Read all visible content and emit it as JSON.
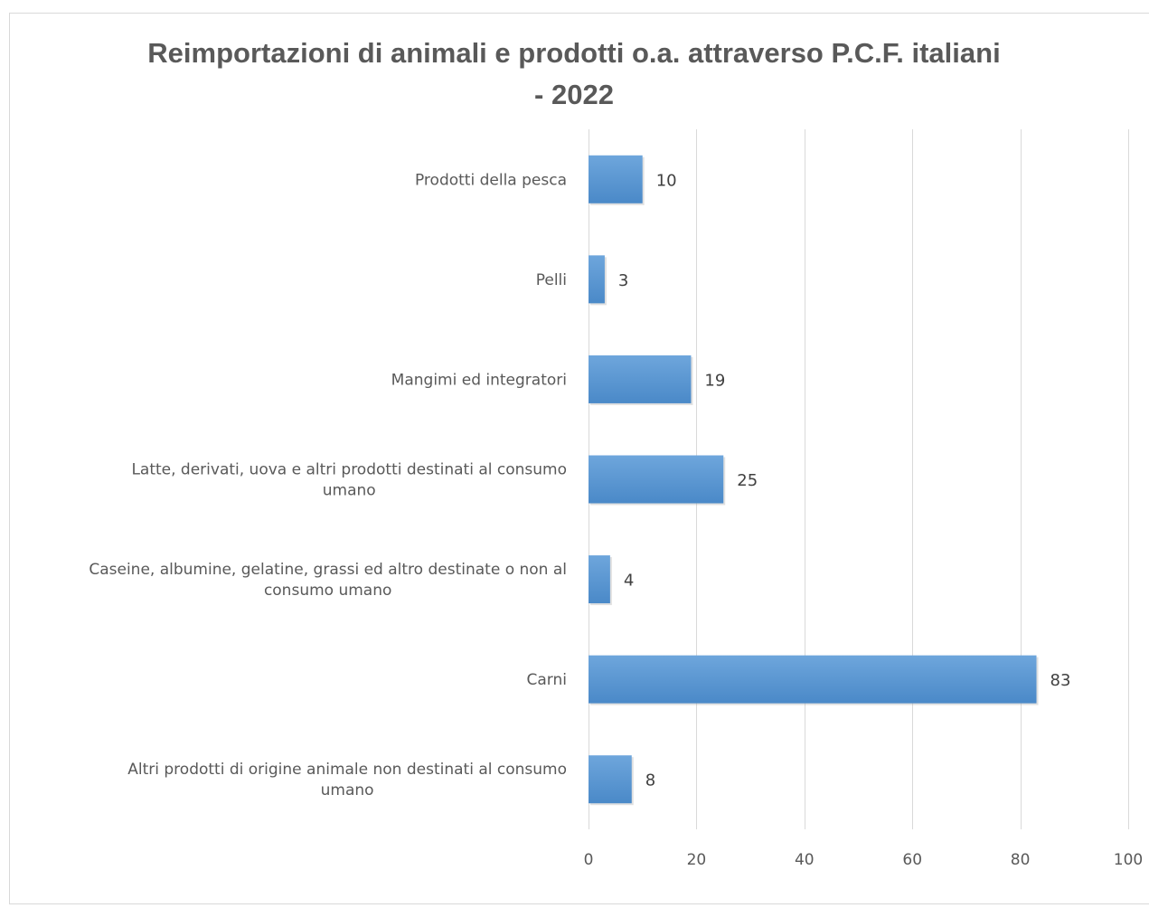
{
  "chart_data": {
    "type": "bar",
    "orientation": "horizontal",
    "title": "Reimportazioni di animali e prodotti o.a. attraverso P.C.F. italiani - 2022",
    "title_lines": [
      "Reimportazioni di animali e prodotti o.a. attraverso P.C.F. italiani",
      "- 2022"
    ],
    "categories": [
      "Prodotti della pesca",
      "Pelli",
      "Mangimi ed integratori",
      "Latte, derivati, uova e altri prodotti destinati al consumo umano",
      "Caseine, albumine, gelatine, grassi ed altro destinate o non al consumo umano",
      "Carni",
      "Altri prodotti di origine animale non destinati al consumo umano"
    ],
    "category_label_lines": [
      [
        "Prodotti della pesca"
      ],
      [
        "Pelli"
      ],
      [
        "Mangimi ed integratori"
      ],
      [
        "Latte, derivati, uova e altri prodotti destinati al consumo",
        "umano"
      ],
      [
        "Caseine, albumine, gelatine, grassi ed altro destinate o non al",
        "consumo umano"
      ],
      [
        "Carni"
      ],
      [
        "Altri prodotti di origine animale non destinati al consumo",
        "umano"
      ]
    ],
    "values": [
      10,
      3,
      19,
      25,
      4,
      83,
      8
    ],
    "data_labels": [
      "10",
      "3",
      "19",
      "25",
      "4",
      "83",
      "8"
    ],
    "xlim": [
      0,
      100
    ],
    "x_ticks": [
      0,
      20,
      40,
      60,
      80,
      100
    ],
    "x_tick_labels": [
      "0",
      "20",
      "40",
      "60",
      "80",
      "100"
    ],
    "xlabel": "",
    "ylabel": "",
    "grid": true,
    "legend": "none",
    "colors": {
      "bar": "#5b9bd5",
      "bar_light": "#6ea6dc",
      "bar_dark": "#4a89c8",
      "grid": "#d9d9d9",
      "text": "#595959",
      "data_label": "#404040"
    }
  }
}
